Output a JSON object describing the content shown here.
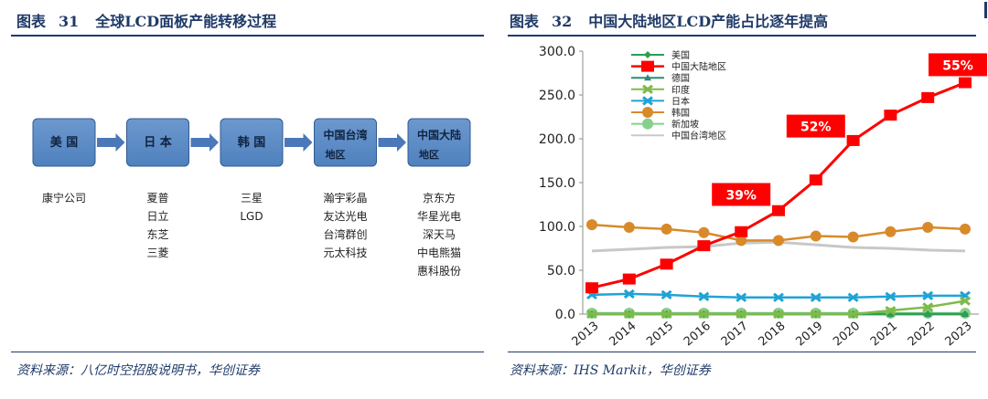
{
  "left": {
    "fig_label": "图表",
    "fig_num": "31",
    "title": "全球LCD面板产能转移过程",
    "source": "资料来源：八亿时空招股说明书，华创证券",
    "stages": [
      {
        "name": "美 国",
        "sub": "",
        "companies": [
          "康宁公司"
        ]
      },
      {
        "name": "日 本",
        "sub": "",
        "companies": [
          "夏普",
          "日立",
          "东芝",
          "三菱"
        ]
      },
      {
        "name": "韩 国",
        "sub": "",
        "companies": [
          "三星",
          "LGD"
        ]
      },
      {
        "name": "中国台湾",
        "sub": "地区",
        "companies": [
          "瀚宇彩晶",
          "友达光电",
          "台湾群创",
          "元太科技"
        ]
      },
      {
        "name": "中国大陆",
        "sub": "地区",
        "companies": [
          "京东方",
          "华星光电",
          "深天马",
          "中电熊猫",
          "惠科股份"
        ]
      }
    ],
    "colors": {
      "box": "#4f81bd",
      "box_dark": "#2f5b8f",
      "arrow": "#4a78b8",
      "title": "#1f3a68"
    }
  },
  "right": {
    "fig_label": "图表",
    "fig_num": "32",
    "title": "中国大陆地区LCD产能占比逐年提高",
    "source": "资料来源：IHS Markit，华创证券"
  },
  "chart_data": {
    "type": "line",
    "title": "中国大陆地区LCD产能占比逐年提高",
    "xlabel": "",
    "ylabel": "",
    "x": [
      "2013",
      "2014",
      "2015",
      "2016",
      "2017",
      "2018",
      "2019",
      "2020",
      "2021",
      "2022",
      "2023"
    ],
    "ylim": [
      0,
      300
    ],
    "yticks": [
      "0.0",
      "50.0",
      "100.0",
      "150.0",
      "200.0",
      "250.0",
      "300.0"
    ],
    "ytick_values": [
      0,
      50,
      100,
      150,
      200,
      250,
      300
    ],
    "grid": false,
    "legend_position": "top-left",
    "series": [
      {
        "name": "美国",
        "color": "#2e9e4f",
        "marker": "diamond",
        "values": [
          0,
          0,
          0,
          0,
          0,
          0,
          0,
          0,
          0,
          0,
          0
        ]
      },
      {
        "name": "中国大陆地区",
        "color": "#ff0000",
        "marker": "square",
        "values": [
          30,
          40,
          57,
          78,
          94,
          118,
          153,
          198,
          227,
          247,
          264
        ]
      },
      {
        "name": "德国",
        "color": "#2a8c7a",
        "marker": "triangle",
        "values": [
          0,
          0,
          0,
          0,
          0,
          0,
          0,
          0,
          0,
          0,
          0
        ]
      },
      {
        "name": "印度",
        "color": "#7fba4a",
        "marker": "x",
        "values": [
          0,
          0,
          0,
          0,
          0,
          0,
          0,
          0,
          4,
          8,
          15
        ]
      },
      {
        "name": "日本",
        "color": "#1fa3d6",
        "marker": "x",
        "values": [
          22,
          23,
          22,
          20,
          19,
          19,
          19,
          19,
          20,
          21,
          21
        ]
      },
      {
        "name": "韩国",
        "color": "#d88a2a",
        "marker": "circle",
        "values": [
          102,
          99,
          97,
          93,
          84,
          84,
          89,
          88,
          94,
          99,
          97
        ]
      },
      {
        "name": "新加坡",
        "color": "#88d08a",
        "marker": "circle",
        "values": [
          1,
          1,
          1,
          1,
          1,
          1,
          1,
          1,
          1,
          1,
          1
        ]
      },
      {
        "name": "中国台湾地区",
        "color": "#c8c8c8",
        "marker": "none",
        "values": [
          72,
          74,
          76,
          77,
          81,
          82,
          79,
          76,
          75,
          73,
          72
        ]
      }
    ],
    "annotations": [
      {
        "text": "39%",
        "x": "2017",
        "y": 137
      },
      {
        "text": "52%",
        "x": "2019",
        "y": 215
      },
      {
        "text": "55%",
        "x": "2023",
        "y": 285
      }
    ],
    "annotation_color": "#ff0000"
  }
}
